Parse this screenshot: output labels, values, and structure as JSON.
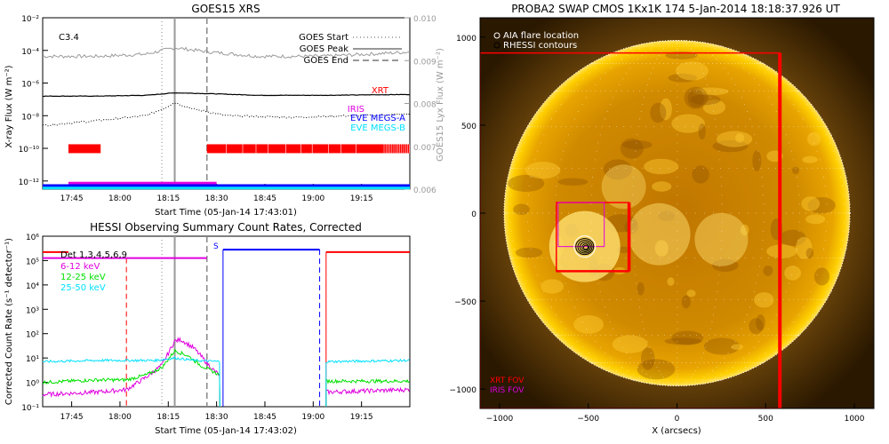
{
  "colors": {
    "axis": "#000000",
    "red": "#ff0000",
    "magenta": "#e000e0",
    "blue": "#0000ff",
    "cyan": "#00e0ff",
    "green": "#00e000",
    "grey": "#9a9a9a",
    "sun_dark": "#4a2800",
    "sun_mid": "#d08a00",
    "sun_bright": "#ffd000"
  },
  "chart_data": [
    {
      "id": "goes",
      "type": "line",
      "title": "GOES15 XRS",
      "class_label": "C3.4",
      "xlabel": "Start Time (05-Jan-14 17:43:01)",
      "ylabel": "X-ray Flux (W m⁻²)",
      "ylabel_right": "GOES15 Lyx Flux (W m⁻²)",
      "x_ticks": [
        "17:45",
        "18:00",
        "18:15",
        "18:30",
        "18:45",
        "19:00",
        "19:15"
      ],
      "x_tick_minutes": [
        2,
        17,
        32,
        47,
        62,
        77,
        92
      ],
      "xlim_minutes": [
        -7,
        107
      ],
      "y_ticks": [
        "10⁻²",
        "10⁻⁴",
        "10⁻⁶",
        "10⁻⁸",
        "10⁻¹⁰",
        "10⁻¹²"
      ],
      "y_tick_exponents": [
        -2,
        -4,
        -6,
        -8,
        -10,
        -12
      ],
      "ylim_log": [
        -12.5,
        -2
      ],
      "y2_ticks": [
        "0.010",
        "0.009",
        "0.008",
        "0.007",
        "0.006"
      ],
      "y2_tick_values": [
        0.01,
        0.009,
        0.008,
        0.007,
        0.006
      ],
      "y2lim": [
        0.006,
        0.01
      ],
      "legend": [
        {
          "label": "GOES Start",
          "style": "dotted"
        },
        {
          "label": "GOES Peak",
          "style": "solid"
        },
        {
          "label": "GOES End",
          "style": "dashed"
        }
      ],
      "markers_minutes": {
        "start": 30,
        "peak": 34,
        "end": 44
      },
      "series": [
        {
          "name": "",
          "role": "lyman-alpha (grey)",
          "x": [
            -7,
            10,
            25,
            34,
            45,
            60,
            80,
            107
          ],
          "y": [
            0.0091,
            0.0091,
            0.00915,
            0.0093,
            0.0092,
            0.0091,
            0.0091,
            0.0092
          ]
        },
        {
          "name": "",
          "role": "long channel (solid)",
          "x": [
            -7,
            10,
            25,
            34,
            45,
            60,
            80,
            107
          ],
          "y_log": [
            -6.8,
            -6.8,
            -6.75,
            -6.6,
            -6.65,
            -6.75,
            -6.75,
            -6.7
          ]
        },
        {
          "name": "",
          "role": "short channel (dotted)",
          "x": [
            -7,
            10,
            25,
            30,
            34,
            40,
            50,
            70,
            107
          ],
          "y_log": [
            -8.6,
            -8.3,
            -8.0,
            -7.6,
            -7.2,
            -7.6,
            -8.0,
            -8.1,
            -7.9
          ]
        }
      ],
      "instrument_labels": [
        {
          "label": "XRT",
          "color": "#ff0000"
        },
        {
          "label": "IRIS",
          "color": "#e000e0"
        },
        {
          "label": "EVE MEGS-A",
          "color": "#0000ff"
        },
        {
          "label": "EVE MEGS-B",
          "color": "#00e0ff"
        }
      ],
      "coverage": {
        "xrt": [
          [
            1,
            11
          ],
          [
            44,
            107
          ]
        ],
        "iris": [
          [
            1,
            47
          ]
        ],
        "eve_a": [
          [
            -7,
            107
          ]
        ],
        "eve_b": [
          [
            -7,
            107
          ]
        ]
      }
    },
    {
      "id": "hessi",
      "type": "line",
      "title": "HESSI Observing Summary Count Rates, Corrected",
      "xlabel": "Start Time (05-Jan-14 17:43:02)",
      "ylabel": "Corrected Count Rate (s⁻¹ detector⁻¹)",
      "x_ticks": [
        "17:45",
        "18:00",
        "18:15",
        "18:30",
        "18:45",
        "19:00",
        "19:15"
      ],
      "x_tick_minutes": [
        2,
        17,
        32,
        47,
        62,
        77,
        92
      ],
      "xlim_minutes": [
        -7,
        107
      ],
      "y_ticks": [
        "10⁶",
        "10⁵",
        "10⁴",
        "10³",
        "10²",
        "10¹",
        "10⁰",
        "10⁻¹"
      ],
      "y_tick_exponents": [
        6,
        5,
        4,
        3,
        2,
        1,
        0,
        -1
      ],
      "ylim_log": [
        -1,
        6
      ],
      "legend_title": "Det 1,3,4,5,6,9",
      "legend": [
        {
          "label": "6-12 keV",
          "color": "#e000e0"
        },
        {
          "label": "12-25 keV",
          "color": "#00e000"
        },
        {
          "label": "25-50 keV",
          "color": "#00e0ff"
        }
      ],
      "s_label": "S",
      "vertical_markers_minutes": {
        "red_dashed": 19,
        "start_dotted": 30,
        "peak_solid": 34,
        "end_dashed": 44,
        "blue_dashed": 79
      },
      "state_bars": [
        {
          "role": "magenta",
          "x": [
            -7,
            44
          ],
          "y_log": 5.1
        },
        {
          "role": "blue",
          "x": [
            49,
            79
          ],
          "y_log": 5.45
        },
        {
          "role": "red",
          "x": [
            81,
            107
          ],
          "y_log": 5.35
        }
      ],
      "series": [
        {
          "name": "6-12 keV",
          "x": [
            -7,
            10,
            19,
            25,
            30,
            34,
            36,
            40,
            46,
            48
          ],
          "y_log": [
            -0.5,
            -0.4,
            -0.3,
            0.2,
            0.7,
            1.7,
            1.75,
            1.4,
            0.5,
            0.3
          ],
          "x2": [
            81,
            107
          ],
          "y2_log": [
            -0.4,
            -0.3
          ]
        },
        {
          "name": "12-25 keV",
          "x": [
            -7,
            10,
            19,
            25,
            30,
            34,
            38,
            42,
            48
          ],
          "y_log": [
            0.0,
            0.1,
            0.1,
            0.3,
            0.6,
            1.3,
            1.1,
            0.7,
            0.3
          ],
          "x2": [
            81,
            107
          ],
          "y2_log": [
            0.05,
            0.05
          ]
        },
        {
          "name": "25-50 keV",
          "x": [
            -7,
            10,
            19,
            28,
            34,
            40,
            48
          ],
          "y_log": [
            0.85,
            0.9,
            0.9,
            0.9,
            1.0,
            0.9,
            0.85
          ],
          "x2": [
            81,
            107
          ],
          "y2_log": [
            0.85,
            0.9
          ]
        }
      ]
    },
    {
      "id": "swap",
      "type": "heatmap",
      "title": "PROBA2 SWAP CMOS 1Kx1K 174  5-Jan-2014 18:18:37.926 UT",
      "xlabel": "X (arcsecs)",
      "ylabel": "",
      "x_ticks": [
        "−1000",
        "−500",
        "0",
        "500",
        "1000"
      ],
      "x_tick_values": [
        -1000,
        -500,
        0,
        500,
        1000
      ],
      "y_ticks": [
        "1000",
        "500",
        "0",
        "−500",
        "−1000"
      ],
      "y_tick_values": [
        1000,
        500,
        0,
        -500,
        -1000
      ],
      "xlim": [
        -1110,
        1110
      ],
      "ylim": [
        -1110,
        1110
      ],
      "legend": [
        {
          "label": "AIA flare location",
          "marker": "o"
        },
        {
          "label": "RHESSI contours",
          "marker": "o"
        }
      ],
      "fov_legend": [
        {
          "label": "XRT FOV",
          "color": "#ff0000"
        },
        {
          "label": "IRIS FOV",
          "color": "#e000e0"
        }
      ],
      "solar_radius": 975,
      "flare_center": [
        -520,
        -190
      ],
      "xrt_fov_large": [
        -1110,
        -1110,
        580,
        910
      ],
      "xrt_fov_small": [
        -680,
        -330,
        -270,
        60
      ],
      "iris_fov": [
        -670,
        -190,
        -410,
        60
      ]
    }
  ]
}
